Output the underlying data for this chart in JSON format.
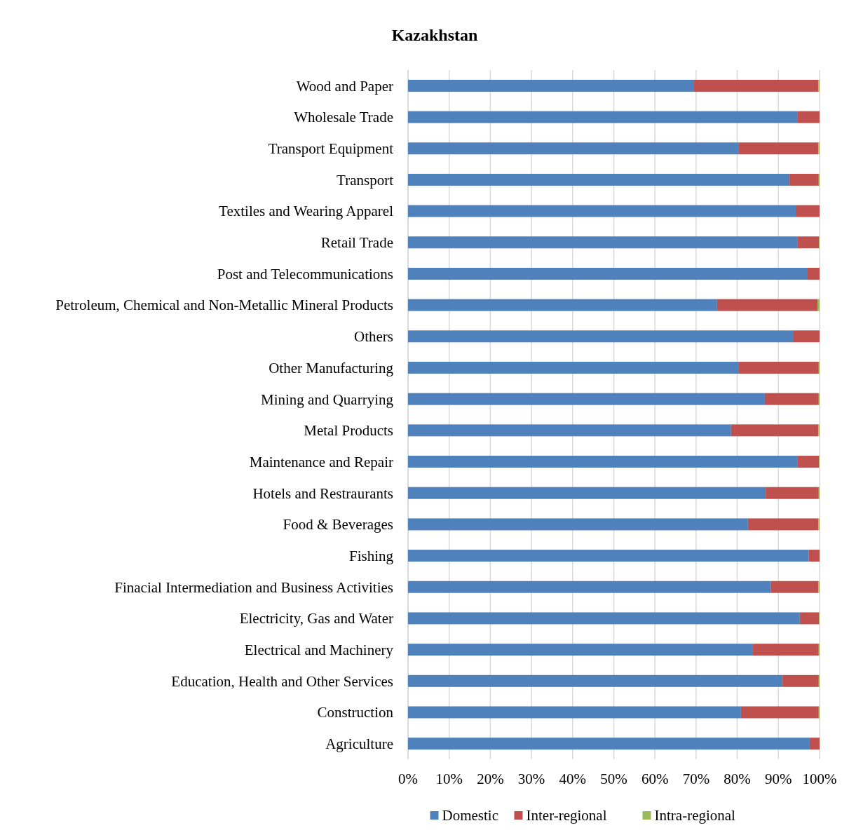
{
  "chart_data": {
    "type": "bar",
    "title": "Kazakhstan",
    "orientation": "horizontal",
    "stacked": true,
    "categories": [
      "Wood and Paper",
      "Wholesale Trade",
      "Transport Equipment",
      "Transport",
      "Textiles and Wearing Apparel",
      "Retail Trade",
      "Post and Telecommunications",
      "Petroleum, Chemical and Non-Metallic Mineral Products",
      "Others",
      "Other Manufacturing",
      "Mining and Quarrying",
      "Metal Products",
      "Maintenance and Repair",
      "Hotels and Restraurants",
      "Food & Beverages",
      "Fishing",
      "Finacial Intermediation and Business Activities",
      "Electricity, Gas and Water",
      "Electrical and Machinery",
      "Education, Health and Other Services",
      "Construction",
      "Agriculture"
    ],
    "series": [
      {
        "name": "Domestic",
        "color": "#4f81bd",
        "values": [
          69.5,
          94.7,
          80.4,
          92.7,
          94.2,
          94.7,
          97.1,
          75.1,
          93.7,
          80.4,
          86.7,
          78.5,
          94.7,
          86.9,
          82.6,
          97.4,
          88.2,
          95.2,
          83.8,
          91.0,
          80.9,
          97.6
        ]
      },
      {
        "name": "Inter-regional",
        "color": "#c0504d",
        "values": [
          30.2,
          5.3,
          19.3,
          7.1,
          5.8,
          5.2,
          2.9,
          24.4,
          6.3,
          19.4,
          13.1,
          21.2,
          5.2,
          12.9,
          17.1,
          2.6,
          11.5,
          4.7,
          16.0,
          8.8,
          18.9,
          2.4
        ]
      },
      {
        "name": "Intra-regional",
        "color": "#9bbb59",
        "values": [
          0.3,
          0,
          0.3,
          0.2,
          0,
          0.1,
          0,
          0.5,
          0,
          0.2,
          0.2,
          0.3,
          0.1,
          0.2,
          0.3,
          0,
          0.3,
          0.1,
          0.2,
          0.2,
          0.2,
          0
        ]
      }
    ],
    "xlim": [
      0,
      100
    ],
    "xticks": [
      {
        "value": 0,
        "label": "0%"
      },
      {
        "value": 10,
        "label": "10%"
      },
      {
        "value": 20,
        "label": "20%"
      },
      {
        "value": 30,
        "label": "30%"
      },
      {
        "value": 40,
        "label": "40%"
      },
      {
        "value": 50,
        "label": "50%"
      },
      {
        "value": 60,
        "label": "60%"
      },
      {
        "value": 70,
        "label": "70%"
      },
      {
        "value": 80,
        "label": "80%"
      },
      {
        "value": 90,
        "label": "90%"
      },
      {
        "value": 100,
        "label": "100%"
      }
    ],
    "grid": "x",
    "legend": "bottom"
  }
}
